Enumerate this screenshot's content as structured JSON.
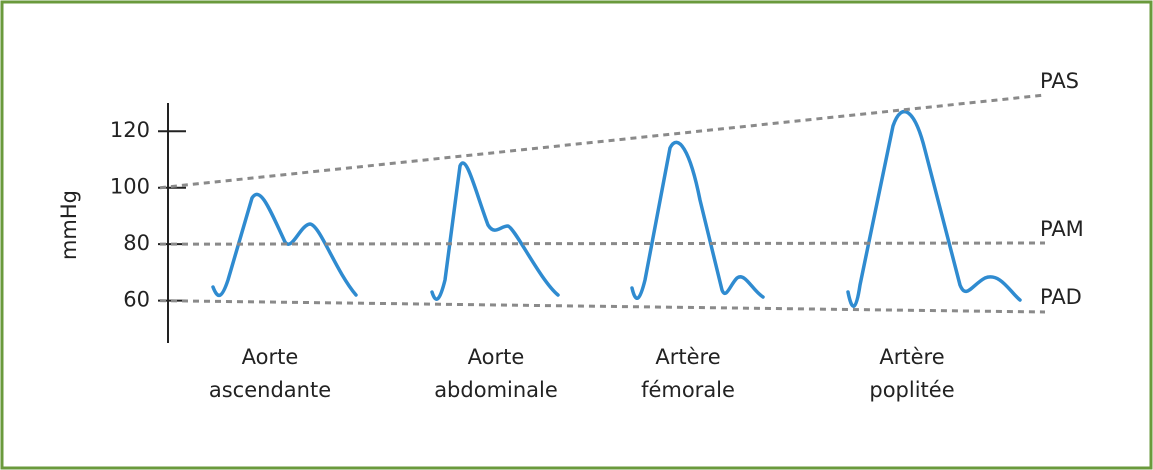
{
  "axis": {
    "label": "mmHg",
    "ylim": [
      45,
      130
    ],
    "yticks": [
      60,
      80,
      100,
      120
    ]
  },
  "lines": [
    {
      "label": "PAS"
    },
    {
      "label": "PAM"
    },
    {
      "label": "PAD"
    }
  ],
  "sites": [
    {
      "label": [
        "Aorte",
        "ascendante"
      ]
    },
    {
      "label": [
        "Aorte",
        "abdominale"
      ]
    },
    {
      "label": [
        "Artère",
        "fémorale"
      ]
    },
    {
      "label": [
        "Artère",
        "poplitée"
      ]
    }
  ]
}
